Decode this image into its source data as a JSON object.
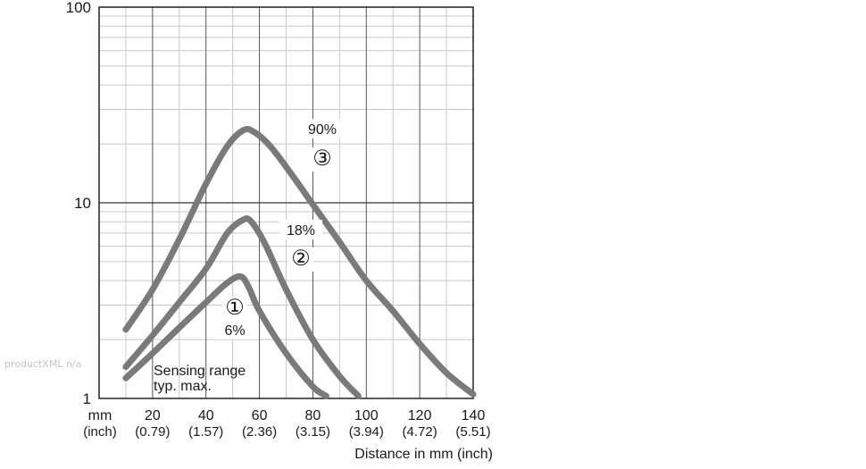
{
  "watermark": "productXML n/a",
  "chart_data": {
    "type": "line",
    "title": "",
    "xlabel": "Distance in mm (inch)",
    "ylabel": "",
    "x_unit_label": "mm",
    "x_unit_label_alt": "(inch)",
    "xlim": [
      0,
      140
    ],
    "ylim": [
      1,
      100
    ],
    "yscale": "log",
    "grid": true,
    "x_ticks": [
      {
        "value": 20,
        "label": "20",
        "sub": "(0.79)"
      },
      {
        "value": 40,
        "label": "40",
        "sub": "(1.57)"
      },
      {
        "value": 60,
        "label": "60",
        "sub": "(2.36)"
      },
      {
        "value": 80,
        "label": "80",
        "sub": "(3.15)"
      },
      {
        "value": 100,
        "label": "100",
        "sub": "(3.94)"
      },
      {
        "value": 120,
        "label": "120",
        "sub": "(4.72)"
      },
      {
        "value": 140,
        "label": "140",
        "sub": "(5.51)"
      }
    ],
    "y_ticks": [
      {
        "value": 1,
        "label": "1"
      },
      {
        "value": 10,
        "label": "10"
      },
      {
        "value": 100,
        "label": "100"
      }
    ],
    "annotation": [
      "Sensing range",
      "typ. max."
    ],
    "line_color": "#7a7a7a",
    "series": [
      {
        "name": "90%",
        "marker": "③",
        "x": [
          10,
          20,
          30,
          40,
          48,
          54,
          58,
          64,
          72,
          80,
          90,
          100,
          110,
          120,
          130,
          140
        ],
        "y": [
          2.25,
          3.6,
          6.5,
          12.5,
          19.5,
          23.5,
          23.0,
          19.5,
          14,
          9.8,
          6.3,
          4.0,
          2.8,
          1.9,
          1.35,
          1.05
        ]
      },
      {
        "name": "18%",
        "marker": "②",
        "x": [
          10,
          20,
          30,
          40,
          48,
          54,
          57,
          62,
          70,
          80,
          90,
          97
        ],
        "y": [
          1.45,
          2.1,
          3.1,
          4.6,
          7.0,
          8.2,
          8.0,
          6.2,
          3.6,
          2.0,
          1.3,
          1.03
        ]
      },
      {
        "name": "6%",
        "marker": "①",
        "x": [
          10,
          20,
          30,
          40,
          48,
          53,
          56,
          60,
          70,
          80,
          85
        ],
        "y": [
          1.27,
          1.7,
          2.3,
          3.1,
          3.9,
          4.2,
          3.7,
          2.8,
          1.7,
          1.15,
          1.03
        ]
      }
    ]
  }
}
